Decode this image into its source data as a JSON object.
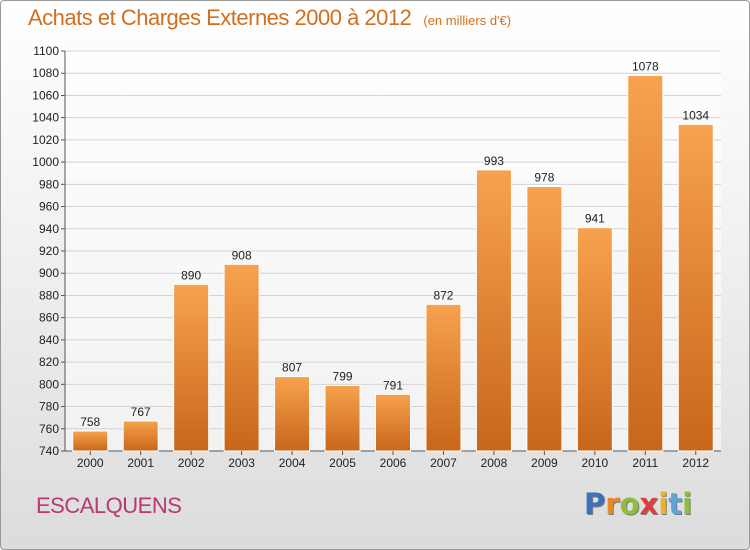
{
  "title": "Achats et Charges Externes 2000 à 2012",
  "subtitle": "(en milliers d'€)",
  "commune": "ESCALQUENS",
  "logo": {
    "letters": [
      "P",
      "r",
      "o",
      "x",
      "i",
      "t",
      "i"
    ],
    "colors": [
      "#3b73b9",
      "#e8882a",
      "#8fbe3c",
      "#e23d3d",
      "#f0b323",
      "#5aa6d6",
      "#8fbe3c"
    ]
  },
  "colors": {
    "bar_top": "#f7a24e",
    "bar_bottom": "#c8661a",
    "title": "#d0701f",
    "commune": "#b8396f"
  },
  "chart_data": {
    "type": "bar",
    "categories": [
      "2000",
      "2001",
      "2002",
      "2003",
      "2004",
      "2005",
      "2006",
      "2007",
      "2008",
      "2009",
      "2010",
      "2011",
      "2012"
    ],
    "values": [
      758,
      767,
      890,
      908,
      807,
      799,
      791,
      872,
      993,
      978,
      941,
      1078,
      1034
    ],
    "ylim": [
      740,
      1100
    ],
    "yticks": [
      740,
      760,
      780,
      800,
      820,
      840,
      860,
      880,
      900,
      920,
      940,
      960,
      980,
      1000,
      1020,
      1040,
      1060,
      1080,
      1100
    ],
    "grid": true
  }
}
